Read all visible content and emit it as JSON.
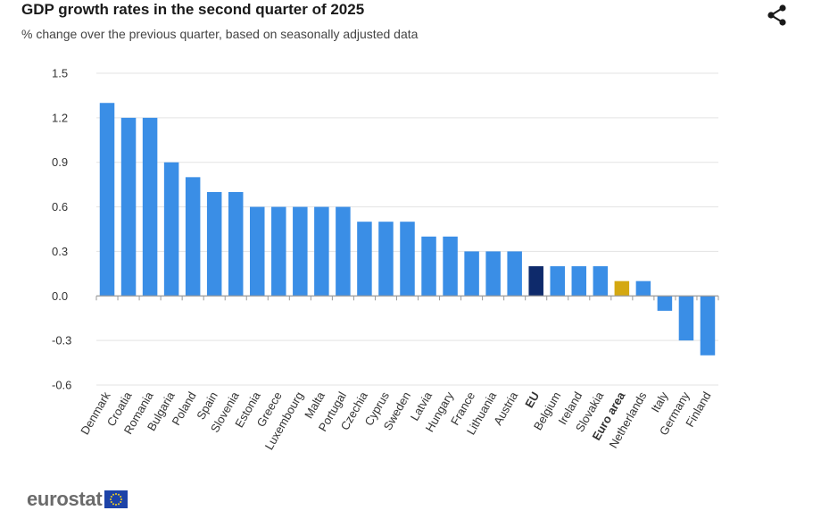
{
  "header": {
    "title": "GDP growth rates in the second quarter of 2025",
    "subtitle": "% change over the previous quarter, based on seasonally adjusted data",
    "share_icon": "share-icon"
  },
  "footer": {
    "logo_text": "eurostat",
    "flag_icon": "eu-flag-icon"
  },
  "colors": {
    "bar": "#3a8ee6",
    "eu": "#0e2a6b",
    "euro_area": "#d4a811",
    "grid": "#e3e3e3",
    "axis": "#9a9a9a"
  },
  "chart_data": {
    "type": "bar",
    "title": "GDP growth rates in the second quarter of 2025",
    "subtitle": "% change over the previous quarter, based on seasonally adjusted data",
    "xlabel": "",
    "ylabel": "",
    "ylim": [
      -0.6,
      1.5
    ],
    "yticks": [
      1.5,
      1.2,
      0.9,
      0.6,
      0.3,
      0.0,
      -0.3,
      -0.6
    ],
    "ytick_labels": [
      "1.5",
      "1.2",
      "0.9",
      "0.6",
      "0.3",
      "0.0",
      "-0.3",
      "-0.6"
    ],
    "grid": true,
    "categories": [
      "Denmark",
      "Croatia",
      "Romania",
      "Bulgaria",
      "Poland",
      "Spain",
      "Slovenia",
      "Estonia",
      "Greece",
      "Luxembourg",
      "Malta",
      "Portugal",
      "Czechia",
      "Cyprus",
      "Sweden",
      "Latvia",
      "Hungary",
      "France",
      "Lithuania",
      "Austria",
      "EU",
      "Belgium",
      "Ireland",
      "Slovakia",
      "Euro area",
      "Netherlands",
      "Italy",
      "Germany",
      "Finland"
    ],
    "values": [
      1.3,
      1.2,
      1.2,
      0.9,
      0.8,
      0.7,
      0.7,
      0.6,
      0.6,
      0.6,
      0.6,
      0.6,
      0.5,
      0.5,
      0.5,
      0.4,
      0.4,
      0.3,
      0.3,
      0.3,
      0.2,
      0.2,
      0.2,
      0.2,
      0.1,
      0.1,
      -0.1,
      -0.3,
      -0.4
    ],
    "highlight": {
      "EU": "eu",
      "Euro area": "euro_area"
    },
    "bold_categories": [
      "EU",
      "Euro area"
    ]
  }
}
